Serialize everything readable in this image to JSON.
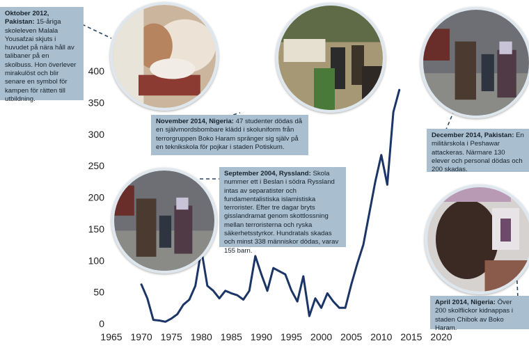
{
  "chart_data": {
    "type": "line",
    "title": "",
    "xlabel": "",
    "ylabel": "",
    "xlim": [
      1965,
      2020
    ],
    "ylim": [
      0,
      400
    ],
    "x_ticks": [
      1965,
      1970,
      1975,
      1980,
      1985,
      1990,
      1995,
      2000,
      2005,
      2010,
      2015,
      2020
    ],
    "y_ticks": [
      0,
      50,
      100,
      150,
      200,
      250,
      300,
      350,
      400
    ],
    "grid": false,
    "legend": "none",
    "series": [
      {
        "name": "",
        "color": "#1b3566",
        "x": [
          1970,
          1971,
          1972,
          1973,
          1974,
          1975,
          1976,
          1977,
          1978,
          1979,
          1980,
          1981,
          1982,
          1983,
          1984,
          1985,
          1986,
          1987,
          1988,
          1989,
          1990,
          1991,
          1992,
          1993,
          1994,
          1995,
          1996,
          1997,
          1998,
          1999,
          2000,
          2001,
          2002,
          2003,
          2004,
          2005,
          2006,
          2007,
          2008,
          2009,
          2010,
          2011,
          2012,
          2013
        ],
        "y": [
          62,
          40,
          6,
          5,
          3,
          8,
          15,
          30,
          38,
          60,
          117,
          60,
          52,
          40,
          52,
          48,
          45,
          38,
          52,
          107,
          78,
          52,
          88,
          83,
          78,
          53,
          35,
          75,
          12,
          40,
          25,
          48,
          35,
          25,
          25,
          62,
          95,
          125,
          175,
          225,
          267,
          220,
          335,
          370
        ]
      }
    ]
  },
  "annotations": [
    {
      "title": "Oktober 2012, Pakistan:",
      "text": "15-åriga skoleleven Malala Yousafzai skjuts i huvudet på nära håll av talibaner på en skolbuss. Hon överlever mirakulöst och blir senare en symbol för kampen för rätten till utbildning."
    },
    {
      "title": "November 2014, Nigeria:",
      "text": "47 studenter dödas då en självmordsbombare klädd i skoluniform från terrorgruppen Boko Haram spränger sig själv på en teknikskola för pojkar i staden Potiskum."
    },
    {
      "title": "December 2014, Pakistan:",
      "text": "En militärskola i Peshawar attackeras. Närmare 130 elever och personal dödas och 200 skadas."
    },
    {
      "title": "September 2004, Ryssland:",
      "text": "Skola nummer ett i Beslan i södra Ryssland intas av separatister och fundamentalistiska islamistiska terrorister. Efter tre dagar bryts gisslandramat genom skottlossning mellan terroristerna och ryska säkerhetsstyrkor. Hundratals skadas och minst 338 människor dödas, varav 155 barn."
    },
    {
      "title": "April 2014, Nigeria:",
      "text": "Över 200 skolflickor kidnappas i staden Chibok av Boko Haram."
    }
  ],
  "colors": {
    "line": "#1b3566",
    "callout_bg": "#a9bfcf",
    "leader": "#2b4660",
    "photo_border": "#dfe7ee"
  }
}
